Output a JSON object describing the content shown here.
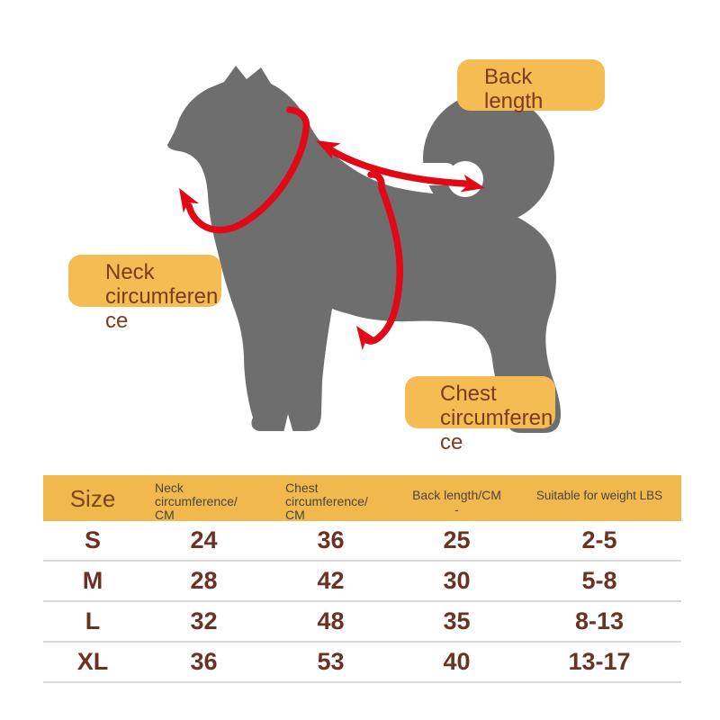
{
  "colors": {
    "dog-gray": "#6e6e6e",
    "arrow-red": "#e10915",
    "label-bg": "#f4bc53",
    "label-text": "#7b3b1e",
    "header-bg": "#f1b94d",
    "header-text": "#49443d",
    "size-header-color": "#7a451c",
    "value-color": "#6b3222",
    "row-line": "#d9d9d9"
  },
  "diagram": {
    "dog": "gray-dog-silhouette-side-view-curled-tail",
    "arrows": [
      "neck-circumference-arrow",
      "back-length-arrow",
      "chest-circumference-arrow"
    ],
    "labels": {
      "back_length": {
        "lines": [
          "Back",
          "length"
        ]
      },
      "neck": {
        "lines": [
          "Neck",
          "circumferen",
          "ce"
        ]
      },
      "chest": {
        "lines": [
          "Chest",
          "circumferen",
          "ce"
        ]
      }
    }
  },
  "table": {
    "columns": [
      {
        "key": "size",
        "lines": [
          "Size"
        ]
      },
      {
        "key": "neck",
        "lines": [
          "Neck",
          "circumference/",
          "CM"
        ]
      },
      {
        "key": "chest",
        "lines": [
          "Chest",
          "circumference/",
          "CM"
        ]
      },
      {
        "key": "back",
        "lines": [
          "Back length/CM",
          "-"
        ]
      },
      {
        "key": "weight",
        "lines": [
          "Suitable for weight LBS"
        ]
      }
    ],
    "rows": [
      {
        "cells": [
          "S",
          "24",
          "36",
          "25",
          "2-5"
        ]
      },
      {
        "cells": [
          "M",
          "28",
          "42",
          "30",
          "5-8"
        ]
      },
      {
        "cells": [
          "L",
          "32",
          "48",
          "35",
          "8-13"
        ]
      },
      {
        "cells": [
          "XL",
          "36",
          "53",
          "40",
          "13-17"
        ]
      }
    ]
  }
}
